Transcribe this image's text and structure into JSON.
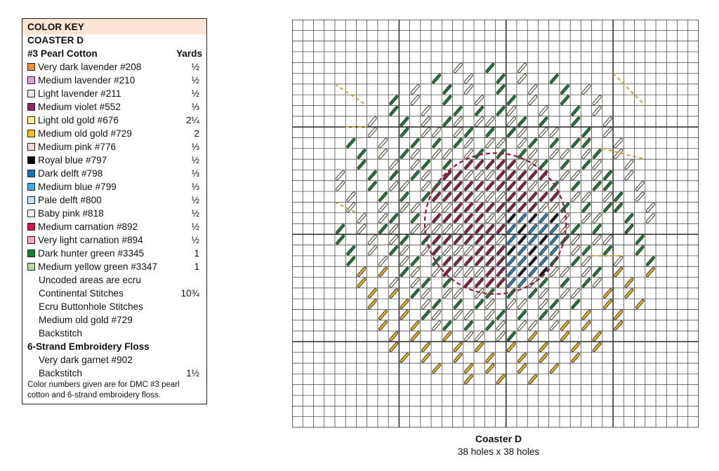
{
  "color_key": {
    "heading": "COLOR KEY",
    "subheading": "COASTER D",
    "pearl_cotton_label": "#3 Pearl Cotton",
    "yards_label": "Yards",
    "items": [
      {
        "label": "Very dark lavender #208",
        "yards": "½",
        "color": "#e8913e"
      },
      {
        "label": "Medium lavender #210",
        "yards": "½",
        "color": "#d3a9d3"
      },
      {
        "label": "Light lavender #211",
        "yards": "½",
        "color": "#ece4ef"
      },
      {
        "label": "Medium violet #552",
        "yards": "⅓",
        "color": "#8b2a6d"
      },
      {
        "label": "Light old gold #676",
        "yards": "2¼",
        "color": "#fbef9a"
      },
      {
        "label": "Medium old gold #729",
        "yards": "2",
        "color": "#f1c21b"
      },
      {
        "label": "Medium pink #776",
        "yards": "⅓",
        "color": "#f6d7d6"
      },
      {
        "label": "Royal blue #797",
        "yards": "½",
        "color": "#000000"
      },
      {
        "label": "Dark delft #798",
        "yards": "⅓",
        "color": "#1f6fa8"
      },
      {
        "label": "Medium blue #799",
        "yards": "⅓",
        "color": "#45aadf"
      },
      {
        "label": "Pale delft #800",
        "yards": "½",
        "color": "#c4dff1"
      },
      {
        "label": "Baby pink #818",
        "yards": "½",
        "color": "#fbf3f3"
      },
      {
        "label": "Medium carnation #892",
        "yards": "½",
        "color": "#d4124a"
      },
      {
        "label": "Very light carnation #894",
        "yards": "½",
        "color": "#f7a9be"
      },
      {
        "label": "Dark hunter green #3345",
        "yards": "1",
        "color": "#1e7a32"
      },
      {
        "label": "Medium yellow green #3347",
        "yards": "1",
        "color": "#b9d7a2"
      }
    ],
    "uncoded_line": "Uncoded areas are ecru",
    "continental_label": "Continental Stitches",
    "continental_yards": "10¾",
    "ecru_buttonhole": "Ecru Buttonhole Stitches",
    "old_gold_backstitch": "Medium old gold #729",
    "backstitch_label": "Backstitch",
    "floss_heading": "6-Strand Embroidery Floss",
    "garnet_label": "Very dark garnet #902",
    "garnet_backstitch": "Backstitch",
    "garnet_yards": "1½",
    "footnote": "Color numbers given are for DMC #3 pearl cotton and 6-strand embroidery floss."
  },
  "chart": {
    "title": "Coaster D",
    "dimensions": "38 holes x 38 holes",
    "grid_cells": 38,
    "colors": {
      "outline": "#3b3b3b",
      "ecru_fill": "#fffbe6",
      "green": "#1e7a32",
      "gold": "#e2b422",
      "garnet": "#8e1c3f",
      "navy": "#111122",
      "blue": "#2a83b8",
      "tan_back": "#c9a236",
      "garnet_back": "#8e1c3f"
    }
  }
}
